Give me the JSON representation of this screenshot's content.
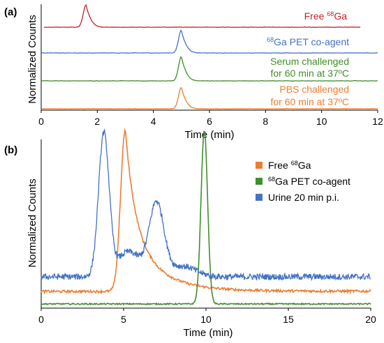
{
  "figure": {
    "panel_a_label": "(a)",
    "panel_b_label": "(b)"
  },
  "colors": {
    "red": "#c8202a",
    "blue": "#4472c4",
    "green": "#3f8f2a",
    "orange": "#ed7d31",
    "axis": "#000000"
  },
  "chart_data": [
    {
      "panel": "(a)",
      "type": "line",
      "xlabel": "Time (min)",
      "ylabel": "Normalized Counts",
      "xlim": [
        0,
        12
      ],
      "xticks": [
        "0",
        "2",
        "4",
        "6",
        "8",
        "10",
        "12"
      ],
      "stacked_traces": true,
      "series": [
        {
          "name": "Free 68Ga",
          "color": "#c8202a",
          "peak_time": 1.6,
          "x_range": [
            0.1,
            11.4
          ]
        },
        {
          "name": "68Ga PET co-agent",
          "color": "#4472c4",
          "peak_time": 5.0,
          "x_range": [
            0,
            12
          ]
        },
        {
          "name": "Serum challenged for 60 min at 37ºC",
          "color": "#3f8f2a",
          "peak_time": 5.0,
          "x_range": [
            0,
            12
          ]
        },
        {
          "name": "PBS challenged for 60 min at 37ºC",
          "color": "#ed7d31",
          "peak_time": 5.0,
          "x_range": [
            0,
            12
          ]
        }
      ],
      "annotations": [
        {
          "lines": [
            "Free ",
            "68",
            "Ga"
          ],
          "color": "#c8202a"
        },
        {
          "lines": [
            "68",
            "Ga PET co-agent"
          ],
          "color": "#4472c4"
        },
        {
          "lines": [
            "Serum challenged",
            "for 60 min at 37ºC"
          ],
          "color": "#3f8f2a"
        },
        {
          "lines": [
            "PBS challenged",
            "for 60 min at 37ºC"
          ],
          "color": "#ed7d31"
        }
      ]
    },
    {
      "panel": "(b)",
      "type": "line",
      "xlabel": "Time (min)",
      "ylabel": "Normalized Counts",
      "xlim": [
        0,
        20
      ],
      "xticks": [
        "0",
        "5",
        "10",
        "15",
        "20"
      ],
      "legend_position": "top-right",
      "series": [
        {
          "name": "Free 68Ga",
          "color": "#ed7d31",
          "baseline": 0.06,
          "peak_time": 5.1,
          "peak_value": 0.83
        },
        {
          "name": "68Ga PET co-agent",
          "color": "#3f8f2a",
          "baseline": 0.0,
          "peak_time": 9.9,
          "peak_value": 0.83
        },
        {
          "name": "Urine 20 min p.i.",
          "color": "#4472c4",
          "baseline": 0.13,
          "peak_times": [
            3.8,
            7.0
          ],
          "peak_values": [
            0.81,
            0.48
          ]
        }
      ],
      "legend": [
        {
          "pre": "Free ",
          "sup": "68",
          "post": "Ga"
        },
        {
          "pre": "",
          "sup": "68",
          "post": "Ga PET co-agent"
        },
        {
          "pre": "Urine 20 min p.i.",
          "sup": "",
          "post": ""
        }
      ]
    }
  ]
}
